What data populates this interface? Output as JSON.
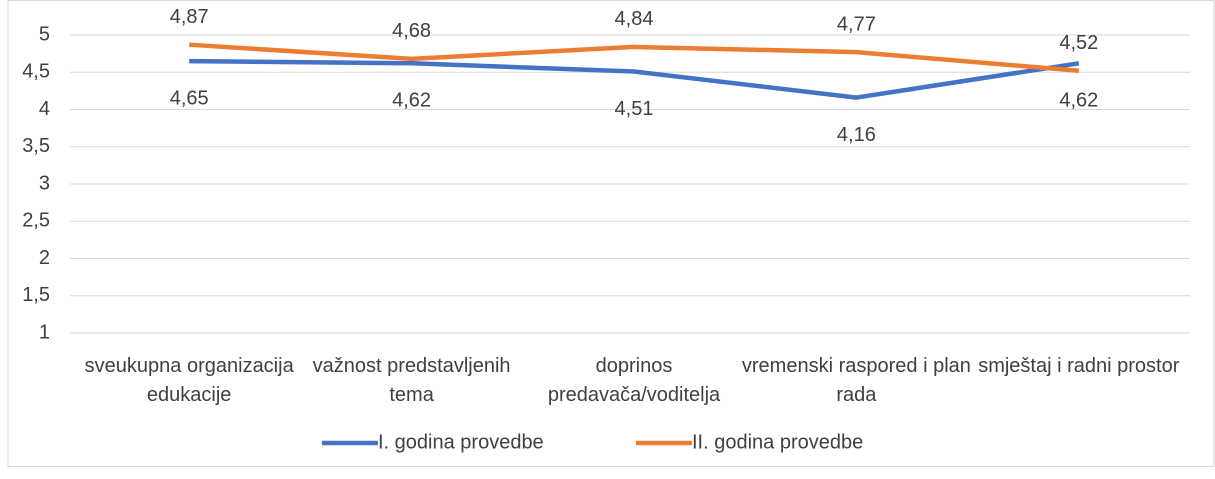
{
  "chart_data": {
    "type": "line",
    "categories": [
      "sveukupna organizacija edukacije",
      "važnost predstavljenih tema",
      "doprinos predavača/voditelja",
      "vremenski raspored i plan rada",
      "smještaj i radni prostor"
    ],
    "series": [
      {
        "name": "I. godina provedbe",
        "color": "#4472c4",
        "values": [
          4.65,
          4.62,
          4.51,
          4.16,
          4.62
        ],
        "value_labels": [
          "4,65",
          "4,62",
          "4,51",
          "4,16",
          "4,62"
        ]
      },
      {
        "name": "II. godina provedbe",
        "color": "#ed7d31",
        "values": [
          4.87,
          4.68,
          4.84,
          4.77,
          4.52
        ],
        "value_labels": [
          "4,87",
          "4,68",
          "4,84",
          "4,77",
          "4,52"
        ]
      }
    ],
    "ylim": [
      1,
      5
    ],
    "yticks": [
      {
        "value": 1,
        "label": "1"
      },
      {
        "value": 1.5,
        "label": "1,5"
      },
      {
        "value": 2,
        "label": "2"
      },
      {
        "value": 2.5,
        "label": "2,5"
      },
      {
        "value": 3,
        "label": "3"
      },
      {
        "value": 3.5,
        "label": "3,5"
      },
      {
        "value": 4,
        "label": "4"
      },
      {
        "value": 4.5,
        "label": "4,5"
      },
      {
        "value": 5,
        "label": "5"
      }
    ],
    "grid": true,
    "legend": "bottom"
  }
}
